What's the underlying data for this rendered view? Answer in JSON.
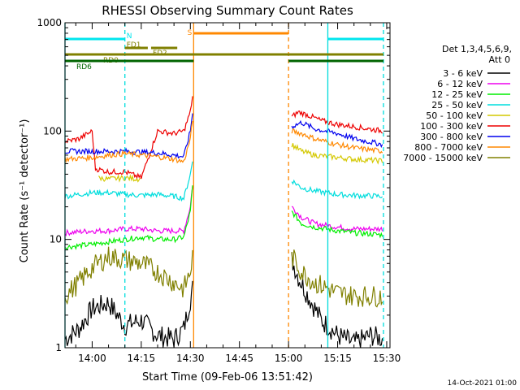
{
  "chart_data": {
    "type": "line",
    "title": "RHESSI Observing Summary Count Rates",
    "xlabel": "Start Time (09-Feb-06 13:51:42)",
    "ylabel": "Count Rate (s⁻¹ detector⁻¹)",
    "y_scale": "log",
    "ylim": [
      1,
      1000
    ],
    "xlim": [
      "13:51:42",
      "15:31:00"
    ],
    "x_ticks": [
      "14:00",
      "14:15",
      "14:30",
      "14:45",
      "15:00",
      "15:15",
      "15:30"
    ],
    "y_ticks": [
      "1",
      "10",
      "100",
      "1000"
    ],
    "legend_header": [
      "Det 1,3,4,5,6,9,",
      "Att 0"
    ],
    "legend_position": "right",
    "footer_date": "14-Oct-2021 01:00",
    "data_gap": [
      "14:31:00",
      "15:01:00"
    ],
    "vertical_lines": [
      {
        "time": "13:51:42",
        "color": "#00dddd",
        "style": "solid"
      },
      {
        "time": "14:10:00",
        "color": "#00dddd",
        "style": "dashed"
      },
      {
        "time": "14:31:00",
        "color": "#ff8800",
        "style": "solid"
      },
      {
        "time": "15:00:00",
        "color": "#ff8800",
        "style": "dashed"
      },
      {
        "time": "15:12:00",
        "color": "#00dddd",
        "style": "solid"
      },
      {
        "time": "15:29:00",
        "color": "#00dddd",
        "style": "dashed"
      }
    ],
    "flags": [
      {
        "label": "N",
        "color": "#00e5ee",
        "segments": [
          [
            "13:51:42",
            "14:10:00"
          ],
          [
            "15:12:00",
            "15:29:00"
          ]
        ]
      },
      {
        "label": "S",
        "color": "#ff8800",
        "segments": [
          [
            "14:31:00",
            "15:00:00"
          ]
        ]
      },
      {
        "label": "FD1",
        "color": "#808000",
        "segments": [
          [
            "14:10:00",
            "14:17:00"
          ]
        ]
      },
      {
        "label": "FD2",
        "color": "#808000",
        "segments": [
          [
            "14:18:00",
            "14:26:00"
          ]
        ]
      },
      {
        "label": "RD0",
        "color": "#808000",
        "segments": [
          [
            "13:51:42",
            "15:29:00"
          ]
        ]
      },
      {
        "label": "RD6",
        "color": "#006400",
        "segments": [
          [
            "13:51:42",
            "14:31:00"
          ],
          [
            "15:00:00",
            "15:29:00"
          ]
        ]
      }
    ],
    "series": [
      {
        "name": "3 - 6 keV",
        "color": "#000000",
        "points": [
          [
            "13:51:42",
            1.2
          ],
          [
            "13:56:00",
            1.5
          ],
          [
            "14:00:00",
            2.3
          ],
          [
            "14:05:00",
            2.6
          ],
          [
            "14:10:00",
            1.6
          ],
          [
            "14:15:00",
            1.8
          ],
          [
            "14:20:00",
            1.3
          ],
          [
            "14:25:00",
            1.2
          ],
          [
            "14:28:00",
            1.5
          ],
          [
            "14:30:00",
            2.8
          ],
          [
            "14:31:00",
            4.0
          ],
          [
            "15:01:00",
            6.5
          ],
          [
            "15:03:00",
            4.5
          ],
          [
            "15:06:00",
            3.0
          ],
          [
            "15:10:00",
            1.8
          ],
          [
            "15:15:00",
            1.3
          ],
          [
            "15:20:00",
            1.1
          ],
          [
            "15:25:00",
            1.3
          ],
          [
            "15:29:00",
            1.2
          ]
        ]
      },
      {
        "name": "6 - 12 keV",
        "color": "#ee00ee",
        "points": [
          [
            "13:51:42",
            11.5
          ],
          [
            "14:00:00",
            12.0
          ],
          [
            "14:05:00",
            12.0
          ],
          [
            "14:10:00",
            12.5
          ],
          [
            "14:15:00",
            12.5
          ],
          [
            "14:20:00",
            12.0
          ],
          [
            "14:25:00",
            12.0
          ],
          [
            "14:28:00",
            12.0
          ],
          [
            "14:30:00",
            20.0
          ],
          [
            "14:31:00",
            40.0
          ],
          [
            "15:01:00",
            20.0
          ],
          [
            "15:04:00",
            16.0
          ],
          [
            "15:08:00",
            14.0
          ],
          [
            "15:15:00",
            13.0
          ],
          [
            "15:20:00",
            12.5
          ],
          [
            "15:29:00",
            12.5
          ]
        ]
      },
      {
        "name": "12 - 25 keV",
        "color": "#00ee00",
        "points": [
          [
            "13:51:42",
            8.5
          ],
          [
            "14:00:00",
            9.0
          ],
          [
            "14:05:00",
            9.5
          ],
          [
            "14:10:00",
            10.0
          ],
          [
            "14:15:00",
            10.5
          ],
          [
            "14:20:00",
            10.0
          ],
          [
            "14:25:00",
            10.0
          ],
          [
            "14:28:00",
            10.5
          ],
          [
            "14:30:00",
            18.0
          ],
          [
            "14:31:00",
            40.0
          ],
          [
            "15:01:00",
            18.0
          ],
          [
            "15:04:00",
            14.0
          ],
          [
            "15:08:00",
            13.0
          ],
          [
            "15:15:00",
            12.0
          ],
          [
            "15:20:00",
            11.5
          ],
          [
            "15:29:00",
            11.0
          ]
        ]
      },
      {
        "name": "25 - 50 keV",
        "color": "#00dddd",
        "points": [
          [
            "13:51:42",
            25.0
          ],
          [
            "14:00:00",
            27.0
          ],
          [
            "14:05:00",
            27.0
          ],
          [
            "14:10:00",
            26.0
          ],
          [
            "14:15:00",
            25.5
          ],
          [
            "14:20:00",
            26.0
          ],
          [
            "14:25:00",
            25.0
          ],
          [
            "14:28:00",
            24.0
          ],
          [
            "14:30:00",
            40.0
          ],
          [
            "14:31:00",
            60.0
          ],
          [
            "15:01:00",
            35.0
          ],
          [
            "15:04:00",
            30.0
          ],
          [
            "15:08:00",
            28.0
          ],
          [
            "15:15:00",
            26.0
          ],
          [
            "15:20:00",
            25.5
          ],
          [
            "15:29:00",
            25.0
          ]
        ]
      },
      {
        "name": "50 - 100 keV",
        "color": "#d4c800",
        "points": [
          [
            "14:02:00",
            37.0
          ],
          [
            "14:05:00",
            36.0
          ],
          [
            "14:10:00",
            37.0
          ],
          [
            "14:15:00",
            36.0
          ],
          [
            "15:01:00",
            75.0
          ],
          [
            "15:04:00",
            65.0
          ],
          [
            "15:08:00",
            60.0
          ],
          [
            "15:15:00",
            57.0
          ],
          [
            "15:20:00",
            55.0
          ],
          [
            "15:29:00",
            53.0
          ]
        ]
      },
      {
        "name": "100 - 300 keV",
        "color": "#ee0000",
        "points": [
          [
            "13:51:42",
            80.0
          ],
          [
            "13:56:00",
            85.0
          ],
          [
            "14:00:00",
            100.0
          ],
          [
            "14:01:00",
            45.0
          ],
          [
            "14:05:00",
            42.0
          ],
          [
            "14:10:00",
            42.0
          ],
          [
            "14:15:00",
            37.0
          ],
          [
            "14:20:00",
            100.0
          ],
          [
            "14:25:00",
            95.0
          ],
          [
            "14:28:00",
            100.0
          ],
          [
            "14:30:00",
            150.0
          ],
          [
            "14:31:00",
            250.0
          ],
          [
            "15:01:00",
            135.0
          ],
          [
            "15:03:00",
            150.0
          ],
          [
            "15:06:00",
            140.0
          ],
          [
            "15:10:00",
            125.0
          ],
          [
            "15:15:00",
            115.0
          ],
          [
            "15:20:00",
            110.0
          ],
          [
            "15:29:00",
            100.0
          ]
        ]
      },
      {
        "name": "300 - 800 keV",
        "color": "#0000ee",
        "points": [
          [
            "13:51:42",
            65.0
          ],
          [
            "14:00:00",
            65.0
          ],
          [
            "14:05:00",
            65.0
          ],
          [
            "14:10:00",
            65.0
          ],
          [
            "14:15:00",
            64.0
          ],
          [
            "14:20:00",
            63.0
          ],
          [
            "14:25:00",
            60.0
          ],
          [
            "14:28:00",
            58.0
          ],
          [
            "14:30:00",
            100.0
          ],
          [
            "14:31:00",
            180.0
          ],
          [
            "15:01:00",
            110.0
          ],
          [
            "15:04:00",
            120.0
          ],
          [
            "15:08:00",
            105.0
          ],
          [
            "15:15:00",
            95.0
          ],
          [
            "15:20:00",
            85.0
          ],
          [
            "15:29:00",
            75.0
          ]
        ]
      },
      {
        "name": "800 - 7000 keV",
        "color": "#ff8800",
        "points": [
          [
            "13:51:42",
            55.0
          ],
          [
            "14:00:00",
            57.0
          ],
          [
            "14:05:00",
            60.0
          ],
          [
            "14:10:00",
            62.0
          ],
          [
            "14:15:00",
            60.0
          ],
          [
            "14:20:00",
            58.0
          ],
          [
            "14:25:00",
            55.0
          ],
          [
            "14:28:00",
            52.0
          ],
          [
            "14:30:00",
            85.0
          ],
          [
            "14:31:00",
            150.0
          ],
          [
            "15:01:00",
            100.0
          ],
          [
            "15:04:00",
            95.0
          ],
          [
            "15:08:00",
            85.0
          ],
          [
            "15:15:00",
            75.0
          ],
          [
            "15:20:00",
            70.0
          ],
          [
            "15:29:00",
            65.0
          ]
        ]
      },
      {
        "name": "7000 - 15000 keV",
        "color": "#808000",
        "points": [
          [
            "13:51:42",
            3.0
          ],
          [
            "13:56:00",
            4.0
          ],
          [
            "14:00:00",
            5.5
          ],
          [
            "14:05:00",
            7.0
          ],
          [
            "14:10:00",
            6.5
          ],
          [
            "14:15:00",
            6.0
          ],
          [
            "14:20:00",
            5.0
          ],
          [
            "14:25:00",
            4.0
          ],
          [
            "14:28:00",
            3.5
          ],
          [
            "14:30:00",
            5.0
          ],
          [
            "14:31:00",
            8.0
          ],
          [
            "15:01:00",
            7.0
          ],
          [
            "15:04:00",
            5.0
          ],
          [
            "15:08:00",
            4.0
          ],
          [
            "15:15:00",
            3.2
          ],
          [
            "15:20:00",
            3.0
          ],
          [
            "15:29:00",
            3.0
          ]
        ]
      }
    ]
  }
}
